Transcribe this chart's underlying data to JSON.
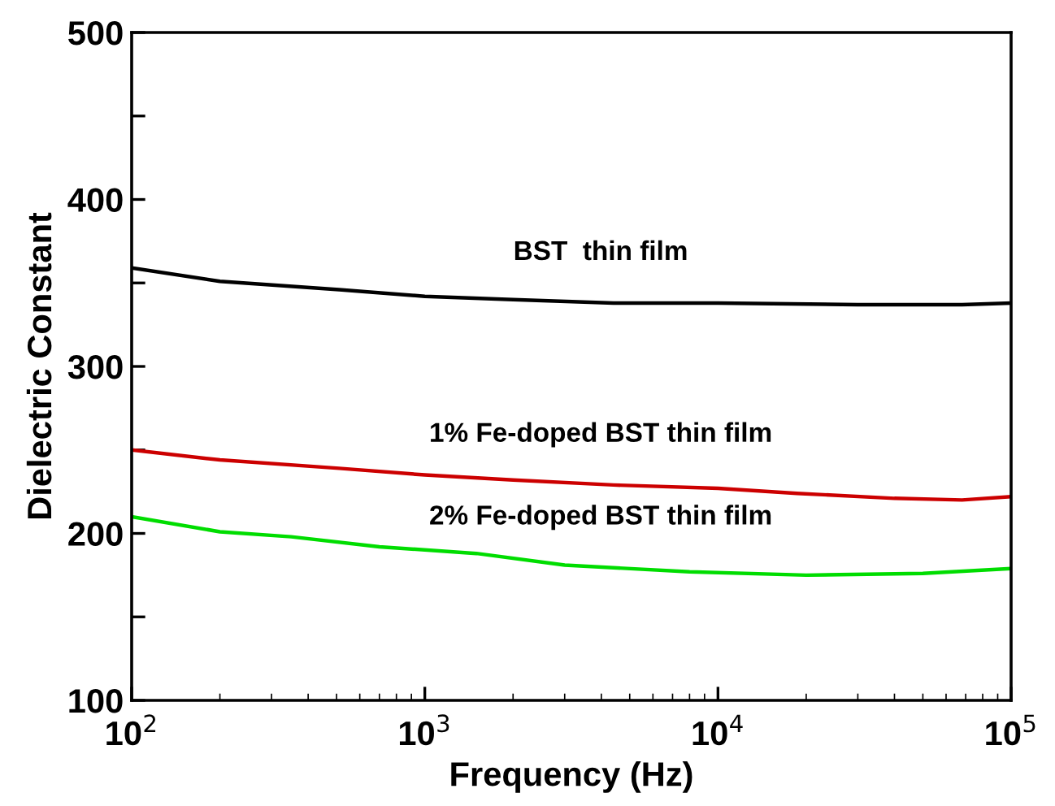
{
  "chart_data": {
    "type": "line",
    "xlabel": "Frequency (Hz)",
    "ylabel": "Dielectric Constant",
    "log": "x",
    "xlim": [
      100,
      100000
    ],
    "xticks": [
      {
        "value": 100,
        "label": "10$^{2}$"
      },
      {
        "value": 1000,
        "label": "10$^{3}$"
      },
      {
        "value": 10000,
        "label": "10$^{4}$"
      },
      {
        "value": 100000,
        "label": "10$^{5}$"
      }
    ],
    "ylim": [
      100,
      500
    ],
    "yticks": [
      100,
      {
        "value": 150,
        "label": null
      },
      200,
      {
        "value": 250,
        "label": null
      },
      300,
      {
        "value": 350,
        "label": null
      },
      400,
      {
        "value": 450,
        "label": null
      },
      500
    ],
    "grid": false,
    "legend": false,
    "marker": "none",
    "line_style": "solid",
    "series": [
      {
        "name": "BST  thin film",
        "color": "#000000",
        "x": [
          100,
          200,
          510,
          1000,
          2000,
          4400,
          10000,
          30000,
          68000,
          100000
        ],
        "values": [
          359,
          351,
          346,
          342,
          340,
          338,
          338,
          337,
          337,
          338
        ]
      },
      {
        "name": "1% Fe-doped BST thin film",
        "color": "#cc0000",
        "x": [
          100,
          200,
          510,
          1000,
          2000,
          4400,
          10000,
          18600,
          40000,
          68000,
          100000
        ],
        "values": [
          250,
          244,
          239,
          235,
          232,
          229,
          227,
          224,
          221,
          220,
          222
        ]
      },
      {
        "name": "2% Fe-doped BST thin film",
        "color": "#00dd00",
        "x": [
          100,
          200,
          350,
          700,
          1500,
          3000,
          8000,
          20000,
          50000,
          100000
        ],
        "values": [
          210,
          201,
          198,
          192,
          188,
          181,
          177,
          175,
          176,
          179
        ]
      }
    ]
  }
}
